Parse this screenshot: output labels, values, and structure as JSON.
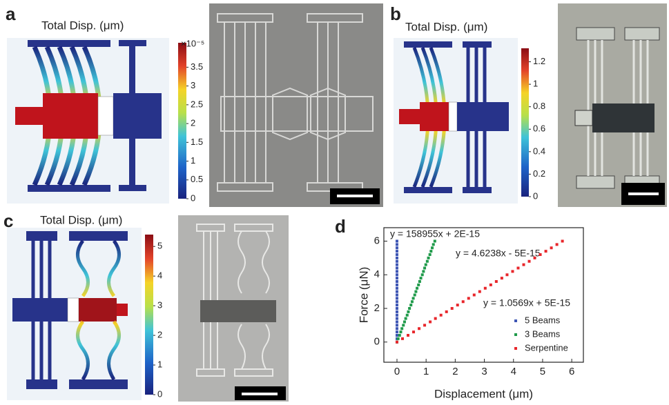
{
  "panels": [
    {
      "label": "a",
      "title": "Total Disp. (μm)",
      "colorbar_exponent": "×10⁻⁵",
      "colorbar_range": [
        0,
        4.15
      ],
      "colorbar_ticks": [
        0,
        0.5,
        1,
        1.5,
        2,
        2.5,
        3,
        3.5
      ]
    },
    {
      "label": "b",
      "title": "Total Disp. (μm)",
      "colorbar_range": [
        0,
        1.32
      ],
      "colorbar_ticks": [
        0,
        0.2,
        0.4,
        0.6,
        0.8,
        1,
        1.2
      ]
    },
    {
      "label": "c",
      "title": "Total Disp. (μm)",
      "colorbar_range": [
        0,
        5.4
      ],
      "colorbar_ticks": [
        0,
        1,
        2,
        3,
        4,
        5
      ]
    }
  ],
  "chart_data": {
    "type": "scatter",
    "label": "d",
    "x_label": "Displacement (μm)",
    "y_label": "Force (μN)",
    "xlim": [
      -0.45,
      6.4
    ],
    "ylim": [
      -1.2,
      6.8
    ],
    "xticks": [
      0,
      1,
      2,
      3,
      4,
      5,
      6
    ],
    "yticks": [
      0,
      2,
      4,
      6
    ],
    "legend": "lower right",
    "series": [
      {
        "name": "5 Beams",
        "color": "#3d55b4",
        "equation": "y = 158955x + 2E-15",
        "x": [
          0,
          0,
          0,
          0,
          0,
          0,
          0,
          0,
          0,
          0,
          0,
          0,
          0,
          0,
          0,
          0,
          0,
          0,
          0,
          0,
          0,
          0,
          0,
          0,
          0,
          0,
          0,
          0,
          0,
          0,
          0
        ],
        "values": [
          0,
          0.2,
          0.4,
          0.6,
          0.8,
          1,
          1.2,
          1.4,
          1.6,
          1.8,
          2,
          2.2,
          2.4,
          2.6,
          2.8,
          3,
          3.2,
          3.4,
          3.6,
          3.8,
          4,
          4.2,
          4.4,
          4.6,
          4.8,
          5,
          5.2,
          5.4,
          5.6,
          5.8,
          6
        ]
      },
      {
        "name": "3 Beams",
        "color": "#1f9a4a",
        "equation": "y = 4.6238x - 5E-15",
        "x": [
          0,
          0.04,
          0.09,
          0.13,
          0.17,
          0.22,
          0.26,
          0.3,
          0.35,
          0.39,
          0.43,
          0.48,
          0.52,
          0.56,
          0.61,
          0.65,
          0.69,
          0.74,
          0.78,
          0.82,
          0.87,
          0.91,
          0.95,
          0.99,
          1.04,
          1.08,
          1.13,
          1.17,
          1.21,
          1.25,
          1.3
        ],
        "values": [
          0,
          0.2,
          0.4,
          0.6,
          0.8,
          1,
          1.2,
          1.4,
          1.6,
          1.8,
          2,
          2.2,
          2.4,
          2.6,
          2.8,
          3,
          3.2,
          3.4,
          3.6,
          3.8,
          4,
          4.2,
          4.4,
          4.6,
          4.8,
          5,
          5.2,
          5.4,
          5.6,
          5.8,
          6
        ]
      },
      {
        "name": "Serpentine",
        "color": "#e8262b",
        "equation": "y = 1.0569x + 5E-15",
        "x": [
          0,
          0.19,
          0.38,
          0.57,
          0.76,
          0.95,
          1.14,
          1.32,
          1.51,
          1.7,
          1.89,
          2.08,
          2.27,
          2.46,
          2.65,
          2.84,
          3.03,
          3.22,
          3.41,
          3.6,
          3.78,
          3.97,
          4.16,
          4.35,
          4.54,
          4.73,
          4.92,
          5.11,
          5.3,
          5.49,
          5.68
        ],
        "values": [
          0,
          0.2,
          0.4,
          0.6,
          0.8,
          1,
          1.2,
          1.4,
          1.6,
          1.8,
          2,
          2.2,
          2.4,
          2.6,
          2.8,
          3,
          3.2,
          3.4,
          3.6,
          3.8,
          4,
          4.2,
          4.4,
          4.6,
          4.8,
          5,
          5.2,
          5.4,
          5.6,
          5.8,
          6
        ]
      }
    ]
  }
}
